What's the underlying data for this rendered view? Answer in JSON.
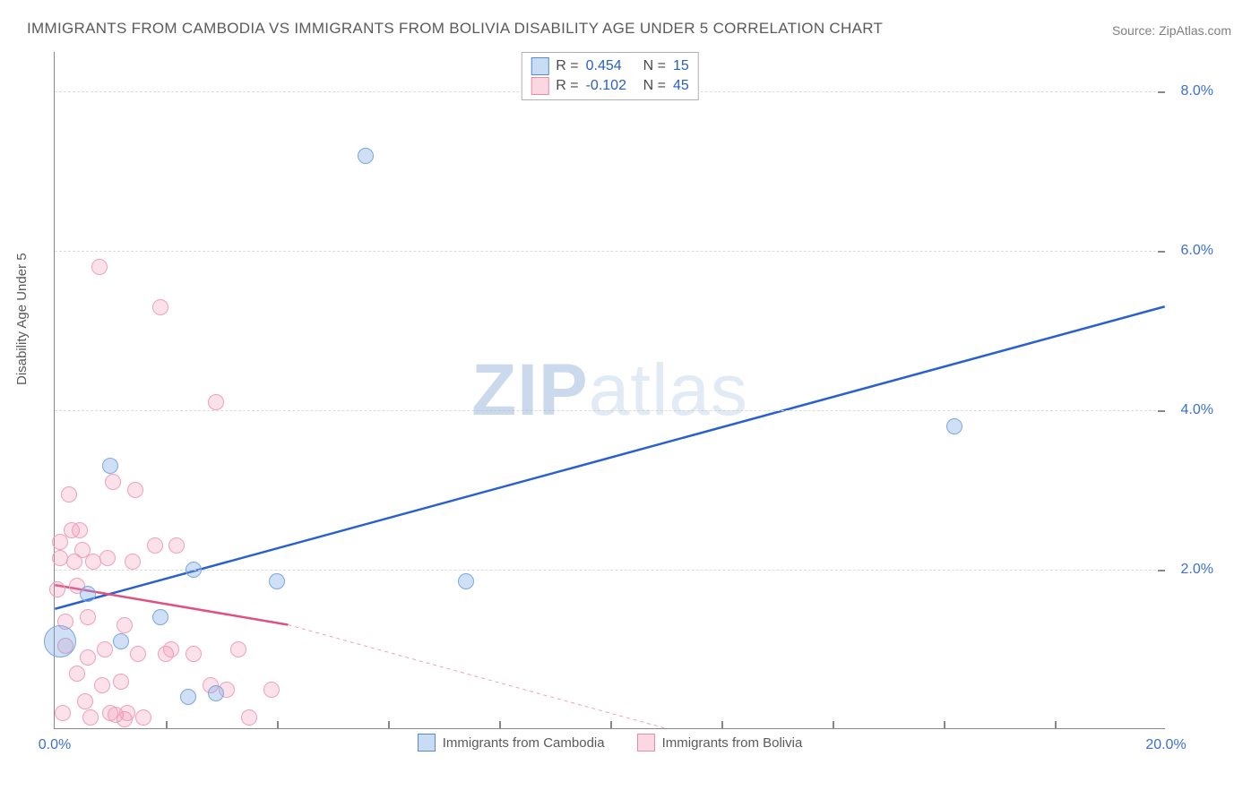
{
  "title": "IMMIGRANTS FROM CAMBODIA VS IMMIGRANTS FROM BOLIVIA DISABILITY AGE UNDER 5 CORRELATION CHART",
  "source": "Source: ZipAtlas.com",
  "watermark": {
    "bold": "ZIP",
    "rest": "atlas"
  },
  "ylabel": "Disability Age Under 5",
  "chart": {
    "type": "scatter",
    "background_color": "#ffffff",
    "grid_color": "#dcdcdc",
    "axis_color": "#888888",
    "font_family": "Arial",
    "title_fontsize": 17,
    "label_fontsize": 15,
    "tick_fontsize": 16,
    "tick_color": "#3b6fd6",
    "xlim": [
      0,
      20
    ],
    "ylim": [
      0,
      8.5
    ],
    "xticks": [
      0,
      20
    ],
    "yticks": [
      2,
      4,
      6,
      8
    ],
    "xtick_labels": [
      "0.0%",
      "20.0%"
    ],
    "ytick_labels": [
      "2.0%",
      "4.0%",
      "6.0%",
      "8.0%"
    ],
    "x_minor_step": 2,
    "marker_radius": 9,
    "marker_radius_big": 18,
    "series": [
      {
        "name": "Immigrants from Cambodia",
        "color_fill": "rgba(117,167,228,0.35)",
        "color_stroke": "#7aa7e0",
        "legend_hex": "#5a8acc",
        "r_label": "R =",
        "n_label": "N =",
        "r_value": "0.454",
        "n_value": "15",
        "trend": {
          "x1": 0,
          "y1": 1.5,
          "x2": 20,
          "y2": 5.3,
          "stroke": "#2860d0",
          "width": 2.5,
          "dash": ""
        },
        "points": [
          {
            "x": 0.1,
            "y": 1.1,
            "r": 18
          },
          {
            "x": 0.6,
            "y": 1.7,
            "r": 9
          },
          {
            "x": 1.0,
            "y": 3.3,
            "r": 9
          },
          {
            "x": 1.2,
            "y": 1.1,
            "r": 9
          },
          {
            "x": 1.9,
            "y": 1.4,
            "r": 9
          },
          {
            "x": 2.4,
            "y": 0.4,
            "r": 9
          },
          {
            "x": 2.5,
            "y": 2.0,
            "r": 9
          },
          {
            "x": 2.9,
            "y": 0.45,
            "r": 9
          },
          {
            "x": 4.0,
            "y": 1.85,
            "r": 9
          },
          {
            "x": 5.6,
            "y": 7.2,
            "r": 9
          },
          {
            "x": 7.4,
            "y": 1.85,
            "r": 9
          },
          {
            "x": 16.2,
            "y": 3.8,
            "r": 9
          }
        ]
      },
      {
        "name": "Immigrants from Bolivia",
        "color_fill": "rgba(240,140,170,0.25)",
        "color_stroke": "#f0a0b8",
        "legend_hex": "#e88ca8",
        "r_label": "R =",
        "n_label": "N =",
        "r_value": "-0.102",
        "n_value": "45",
        "trend_solid": {
          "x1": 0,
          "y1": 1.8,
          "x2": 4.2,
          "y2": 1.3,
          "stroke": "#e05080",
          "width": 2.5
        },
        "trend_dash": {
          "x1": 4.2,
          "y1": 1.3,
          "x2": 11.0,
          "y2": 0.0,
          "stroke": "#f0a0b8",
          "width": 1,
          "dash": "4,4"
        },
        "points": [
          {
            "x": 0.05,
            "y": 1.75
          },
          {
            "x": 0.1,
            "y": 2.15
          },
          {
            "x": 0.1,
            "y": 2.35
          },
          {
            "x": 0.15,
            "y": 0.2
          },
          {
            "x": 0.2,
            "y": 1.35
          },
          {
            "x": 0.2,
            "y": 1.05
          },
          {
            "x": 0.25,
            "y": 2.95
          },
          {
            "x": 0.3,
            "y": 2.5
          },
          {
            "x": 0.35,
            "y": 2.1
          },
          {
            "x": 0.4,
            "y": 0.7
          },
          {
            "x": 0.4,
            "y": 1.8
          },
          {
            "x": 0.45,
            "y": 2.5
          },
          {
            "x": 0.5,
            "y": 2.25
          },
          {
            "x": 0.55,
            "y": 0.35
          },
          {
            "x": 0.6,
            "y": 1.4
          },
          {
            "x": 0.6,
            "y": 0.9
          },
          {
            "x": 0.65,
            "y": 0.15
          },
          {
            "x": 0.7,
            "y": 2.1
          },
          {
            "x": 0.8,
            "y": 5.8
          },
          {
            "x": 0.85,
            "y": 0.55
          },
          {
            "x": 0.9,
            "y": 1.0
          },
          {
            "x": 0.95,
            "y": 2.15
          },
          {
            "x": 1.0,
            "y": 0.2
          },
          {
            "x": 1.05,
            "y": 3.1
          },
          {
            "x": 1.1,
            "y": 0.18
          },
          {
            "x": 1.2,
            "y": 0.6
          },
          {
            "x": 1.25,
            "y": 1.3
          },
          {
            "x": 1.25,
            "y": 0.12
          },
          {
            "x": 1.3,
            "y": 0.2
          },
          {
            "x": 1.4,
            "y": 2.1
          },
          {
            "x": 1.45,
            "y": 3.0
          },
          {
            "x": 1.5,
            "y": 0.95
          },
          {
            "x": 1.6,
            "y": 0.15
          },
          {
            "x": 1.8,
            "y": 2.3
          },
          {
            "x": 1.9,
            "y": 5.3
          },
          {
            "x": 2.0,
            "y": 0.95
          },
          {
            "x": 2.1,
            "y": 1.0
          },
          {
            "x": 2.2,
            "y": 2.3
          },
          {
            "x": 2.5,
            "y": 0.95
          },
          {
            "x": 2.8,
            "y": 0.55
          },
          {
            "x": 2.9,
            "y": 4.1
          },
          {
            "x": 3.1,
            "y": 0.5
          },
          {
            "x": 3.3,
            "y": 1.0
          },
          {
            "x": 3.5,
            "y": 0.15
          },
          {
            "x": 3.9,
            "y": 0.5
          }
        ]
      }
    ]
  },
  "legend_bottom": [
    {
      "swatch": "blue",
      "label": "Immigrants from Cambodia"
    },
    {
      "swatch": "pink",
      "label": "Immigrants from Bolivia"
    }
  ]
}
